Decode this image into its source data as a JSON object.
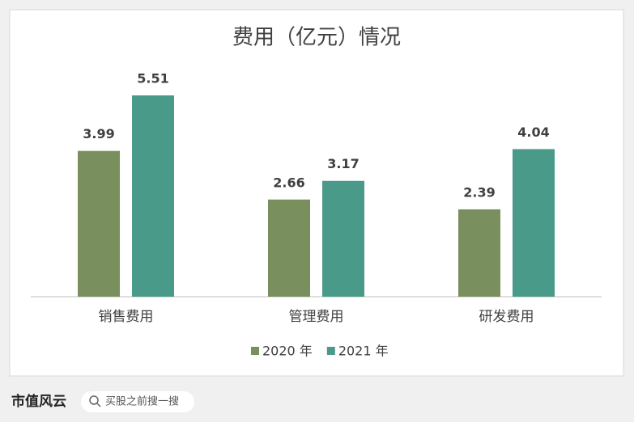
{
  "chart_data": {
    "type": "bar",
    "title": "费用（亿元）情况",
    "categories": [
      "销售费用",
      "管理费用",
      "研发费用"
    ],
    "series": [
      {
        "name": "2020 年",
        "color": "#7a8f5e",
        "values": [
          3.99,
          2.66,
          2.39
        ]
      },
      {
        "name": "2021 年",
        "color": "#4a9a8a",
        "values": [
          5.51,
          3.17,
          4.04
        ]
      }
    ],
    "legend": "bottom"
  },
  "footer": {
    "logo": "市值风云",
    "search": "买股之前搜一搜"
  }
}
